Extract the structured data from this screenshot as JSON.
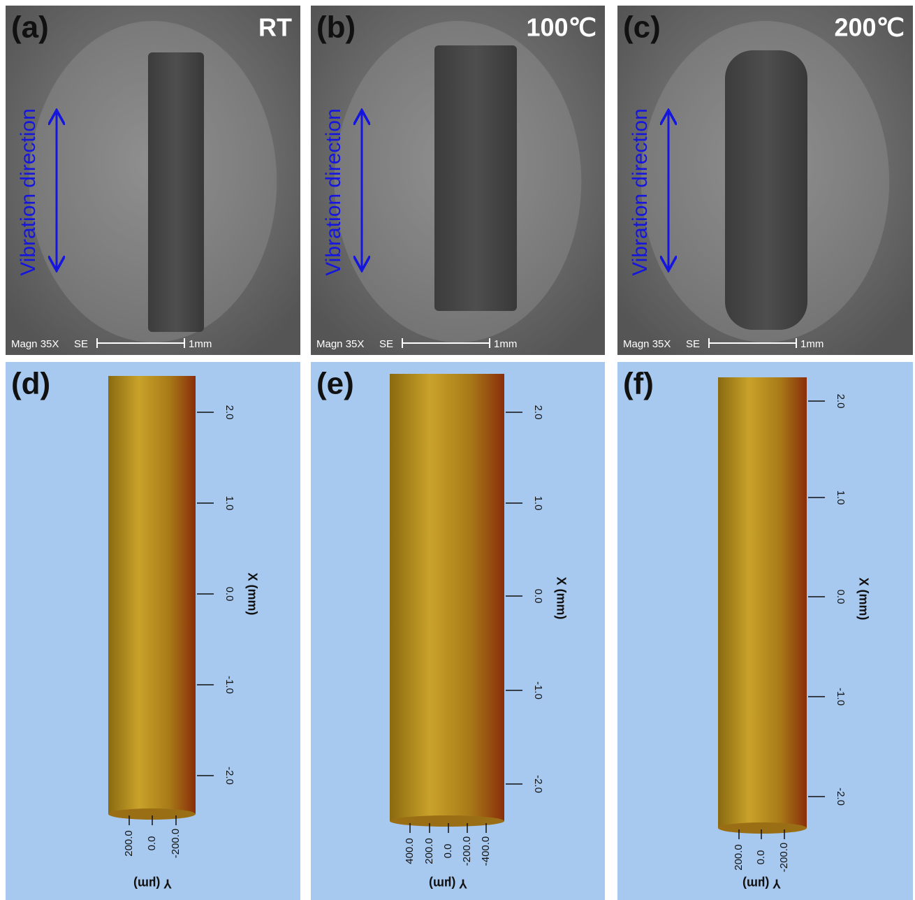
{
  "panels": [
    {
      "label": "(a)",
      "condition": "RT",
      "annotation": "Vibration direction",
      "magnification": "Magn 35X",
      "detector": "SE",
      "scale_bar": "1mm"
    },
    {
      "label": "(b)",
      "condition": "100℃",
      "annotation": "Vibration direction",
      "magnification": "Magn 35X",
      "detector": "SE",
      "scale_bar": "1mm"
    },
    {
      "label": "(c)",
      "condition": "200℃",
      "annotation": "Vibration direction",
      "magnification": "Magn 35X",
      "detector": "SE",
      "scale_bar": "1mm"
    }
  ],
  "profiles": [
    {
      "label": "(d)",
      "x_axis": {
        "title": "X (mm)",
        "ticks": [
          "2.0",
          "1.0",
          "0.0",
          "-1.0",
          "-2.0"
        ]
      },
      "y_axis": {
        "title": "Y (µm)",
        "ticks": [
          "200.0",
          "0.0",
          "-200.0"
        ]
      }
    },
    {
      "label": "(e)",
      "x_axis": {
        "title": "X (mm)",
        "ticks": [
          "2.0",
          "1.0",
          "0.0",
          "-1.0",
          "-2.0"
        ]
      },
      "y_axis": {
        "title": "Y (µm)",
        "ticks": [
          "400.0",
          "200.0",
          "0.0",
          "-200.0",
          "-400.0"
        ]
      }
    },
    {
      "label": "(f)",
      "x_axis": {
        "title": "X (mm)",
        "ticks": [
          "2.0",
          "1.0",
          "0.0",
          "-1.0",
          "-2.0"
        ]
      },
      "y_axis": {
        "title": "Y (µm)",
        "ticks": [
          "200.0",
          "0.0",
          "-200.0"
        ]
      }
    }
  ]
}
